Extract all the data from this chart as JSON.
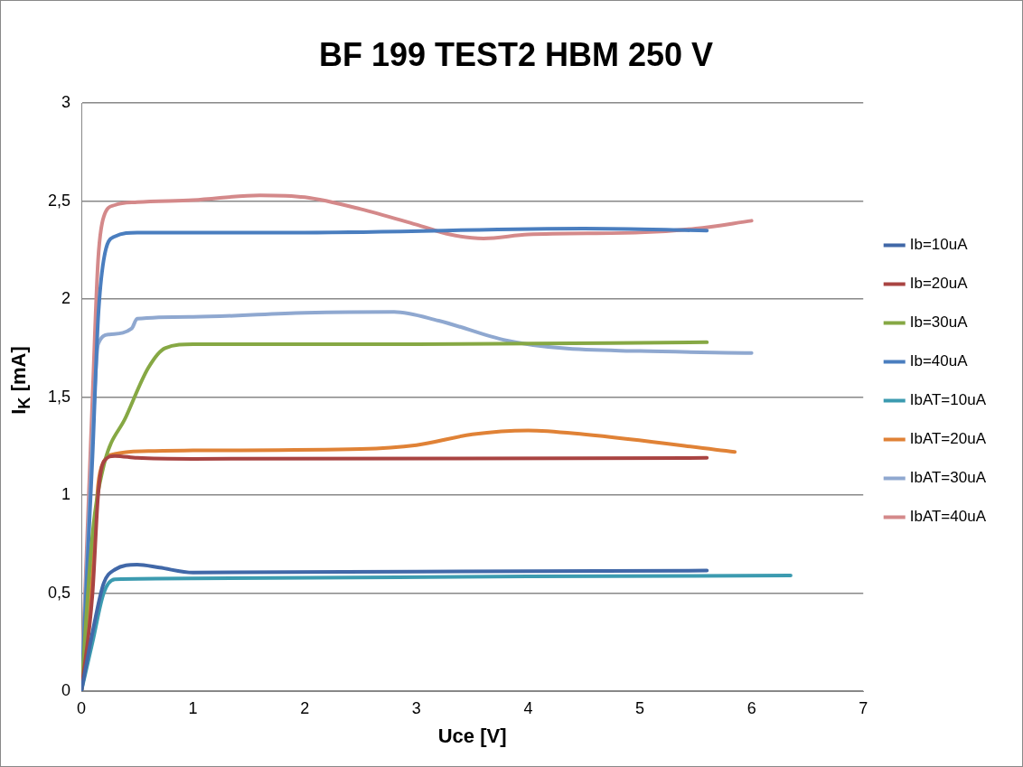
{
  "chart_data": {
    "type": "line",
    "title": "BF 199 TEST2 HBM 250 V",
    "xlabel": "Uce [V]",
    "ylabel": "I$_{K}$ [mA]",
    "xlim": [
      0,
      7
    ],
    "xticks": [
      0,
      1,
      2,
      3,
      4,
      5,
      6,
      7
    ],
    "ylim": [
      0,
      3
    ],
    "yticks": [
      0,
      {
        "value": 0.5,
        "label": "0,5"
      },
      1,
      {
        "value": 1.5,
        "label": "1,5"
      },
      2,
      {
        "value": 2.5,
        "label": "2,5"
      },
      3
    ],
    "grid": "y",
    "legend": "right",
    "marker": "none",
    "line_style": "solid",
    "series": [
      {
        "name": "Ib=10uA",
        "color": "#4168a8",
        "x": [
          0,
          0.1,
          0.2,
          0.3,
          0.5,
          0.7,
          1,
          3,
          5.6
        ],
        "values": [
          0,
          0.3,
          0.55,
          0.62,
          0.645,
          0.63,
          0.605,
          0.61,
          0.615
        ]
      },
      {
        "name": "Ib=20uA",
        "color": "#a94442",
        "x": [
          0,
          0.1,
          0.15,
          0.2,
          0.3,
          0.5,
          1,
          5.6
        ],
        "values": [
          0,
          0.5,
          1.0,
          1.17,
          1.2,
          1.19,
          1.185,
          1.19
        ]
      },
      {
        "name": "Ib=30uA",
        "color": "#86a844",
        "x": [
          0,
          0.1,
          0.2,
          0.4,
          0.6,
          0.75,
          1,
          3,
          5.6
        ],
        "values": [
          0,
          0.8,
          1.15,
          1.4,
          1.65,
          1.75,
          1.77,
          1.77,
          1.78
        ]
      },
      {
        "name": "Ib=40uA",
        "color": "#4a7ebf",
        "x": [
          0,
          0.1,
          0.15,
          0.2,
          0.3,
          0.5,
          2,
          4.5,
          5.6
        ],
        "values": [
          0,
          1.2,
          1.9,
          2.2,
          2.32,
          2.34,
          2.34,
          2.36,
          2.35
        ]
      },
      {
        "name": "IbAT=10uA",
        "color": "#3c9bb0",
        "x": [
          0,
          0.1,
          0.2,
          0.3,
          1,
          4,
          6.35
        ],
        "values": [
          0,
          0.25,
          0.5,
          0.57,
          0.575,
          0.585,
          0.59
        ]
      },
      {
        "name": "IbAT=20uA",
        "color": "#e08236",
        "x": [
          0,
          0.1,
          0.15,
          0.2,
          0.3,
          0.6,
          1,
          2.5,
          3,
          3.5,
          4,
          4.5,
          5.85
        ],
        "values": [
          0,
          0.6,
          1.05,
          1.17,
          1.21,
          1.225,
          1.228,
          1.235,
          1.255,
          1.31,
          1.33,
          1.31,
          1.22
        ]
      },
      {
        "name": "IbAT=30uA",
        "color": "#8fa8d0",
        "x": [
          0,
          0.1,
          0.15,
          0.25,
          0.45,
          0.5,
          1,
          2,
          2.8,
          3.2,
          3.8,
          4.3,
          5,
          6
        ],
        "values": [
          0,
          1.3,
          1.77,
          1.82,
          1.85,
          1.9,
          1.91,
          1.93,
          1.935,
          1.89,
          1.79,
          1.75,
          1.735,
          1.725
        ]
      },
      {
        "name": "IbAT=40uA",
        "color": "#d4898a",
        "x": [
          0,
          0.1,
          0.15,
          0.2,
          0.3,
          0.5,
          1,
          1.6,
          2,
          2.5,
          3,
          3.3,
          3.6,
          4,
          5,
          5.5,
          6
        ],
        "values": [
          0,
          1.5,
          2.2,
          2.42,
          2.48,
          2.495,
          2.505,
          2.53,
          2.52,
          2.46,
          2.38,
          2.33,
          2.31,
          2.33,
          2.34,
          2.36,
          2.4
        ]
      }
    ]
  }
}
